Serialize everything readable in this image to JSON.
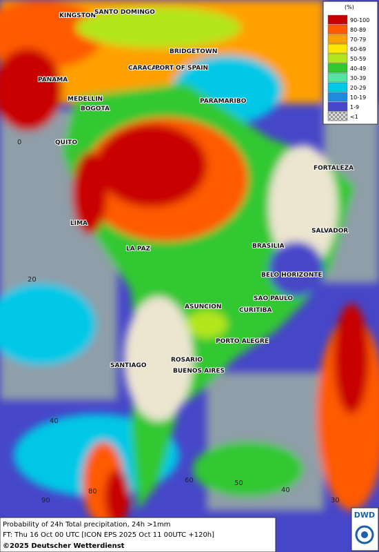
{
  "legend": {
    "title": "(%)",
    "entries": [
      {
        "label": "90-100",
        "color": "#c80000"
      },
      {
        "label": "80-89",
        "color": "#ff5a00"
      },
      {
        "label": "70-79",
        "color": "#ffa000"
      },
      {
        "label": "60-69",
        "color": "#ffe600"
      },
      {
        "label": "50-59",
        "color": "#b4e61e"
      },
      {
        "label": "40-49",
        "color": "#32c832"
      },
      {
        "label": "30-39",
        "color": "#50e6a0"
      },
      {
        "label": "20-29",
        "color": "#00c8e6"
      },
      {
        "label": "10-19",
        "color": "#1e8cdc"
      },
      {
        "label": "1-9",
        "color": "#4646c8"
      },
      {
        "label": "<1",
        "color": "#c8c8c8"
      }
    ]
  },
  "cities": [
    "KINGSTON",
    "SANTO DOMINGO",
    "BRIDGETOWN",
    "CARACAS",
    "PORT OF SPAIN",
    "PANAMA",
    "PARAMARIBO",
    "MEDELLIN",
    "BOGOTA",
    "QUITO",
    "FORTALEZA",
    "LIMA",
    "SALVADOR",
    "BRASILIA",
    "LA PAZ",
    "BELO HORIZONTE",
    "ASUNCION",
    "SAO PAULO",
    "CURITIBA",
    "PORTO ALEGRE",
    "SANTIAGO",
    "ROSARIO",
    "BUENOS AIRES"
  ],
  "grid_labels": [
    "0",
    "20",
    "40",
    "90",
    "80",
    "60",
    "50",
    "40",
    "30"
  ],
  "footer": {
    "line1": "Probability of 24h Total precipitation, 24h >1mm",
    "line2": "FT: Thu 16 Oct 00 UTC [ICON EPS 2025 Oct 11 00UTC +120h]",
    "line3": "©2025 Deutscher Wetterdienst"
  },
  "logo": "DWD"
}
